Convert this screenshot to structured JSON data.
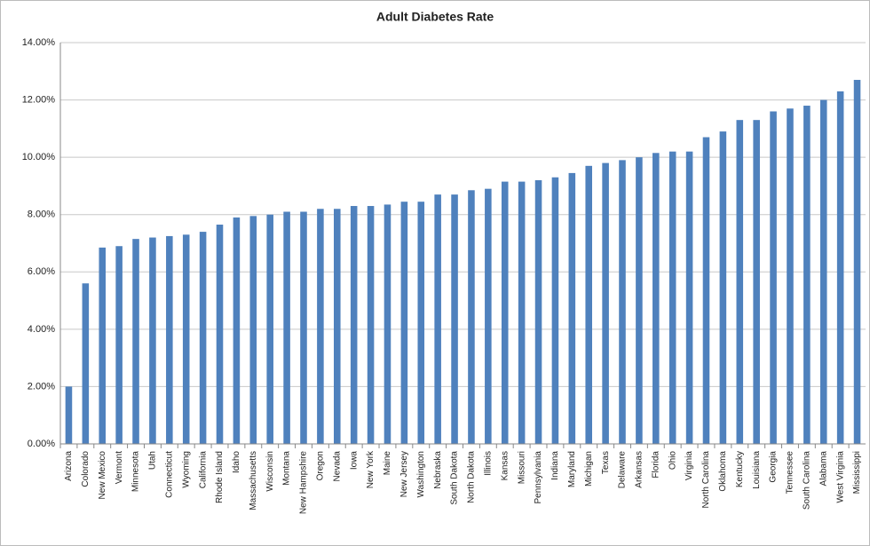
{
  "chart_data": {
    "type": "bar",
    "title": "Adult Diabetes Rate",
    "categories": [
      "Arizona",
      "Colorado",
      "New Mexico",
      "Vermont",
      "Minnesota",
      "Utah",
      "Connecticut",
      "Wyoming",
      "California",
      "Rhode Island",
      "Idaho",
      "Massachusetts",
      "Wisconsin",
      "Montana",
      "New Hampshire",
      "Oregon",
      "Nevada",
      "Iowa",
      "New York",
      "Maine",
      "New Jersey",
      "Washington",
      "Nebraska",
      "South Dakota",
      "North Dakota",
      "Illinois",
      "Kansas",
      "Missouri",
      "Pennsylvania",
      "Indiana",
      "Maryland",
      "Michigan",
      "Texas",
      "Delaware",
      "Arkansas",
      "Florida",
      "Ohio",
      "Virginia",
      "North Carolina",
      "Oklahoma",
      "Kentucky",
      "Louisiana",
      "Georgia",
      "Tennessee",
      "South Carolina",
      "Alabama",
      "West Virginia",
      "Mississippi"
    ],
    "values": [
      2.0,
      5.6,
      6.85,
      6.9,
      7.15,
      7.2,
      7.25,
      7.3,
      7.4,
      7.65,
      7.9,
      7.95,
      8.0,
      8.1,
      8.1,
      8.2,
      8.2,
      8.3,
      8.3,
      8.35,
      8.45,
      8.45,
      8.7,
      8.7,
      8.85,
      8.9,
      9.15,
      9.15,
      9.2,
      9.3,
      9.45,
      9.7,
      9.8,
      9.9,
      10.0,
      10.15,
      10.2,
      10.2,
      10.7,
      10.9,
      11.3,
      11.3,
      11.6,
      11.7,
      11.8,
      12.0,
      12.3,
      12.7
    ],
    "color": "#4f81bd",
    "ylim": [
      0,
      14
    ],
    "yticks": [
      {
        "value": 0,
        "label": "0.00%"
      },
      {
        "value": 2,
        "label": "2.00%"
      },
      {
        "value": 4,
        "label": "4.00%"
      },
      {
        "value": 6,
        "label": "6.00%"
      },
      {
        "value": 8,
        "label": "8.00%"
      },
      {
        "value": 10,
        "label": "10.00%"
      },
      {
        "value": 12,
        "label": "12.00%"
      },
      {
        "value": 14,
        "label": "14.00%"
      }
    ],
    "grid": true
  }
}
